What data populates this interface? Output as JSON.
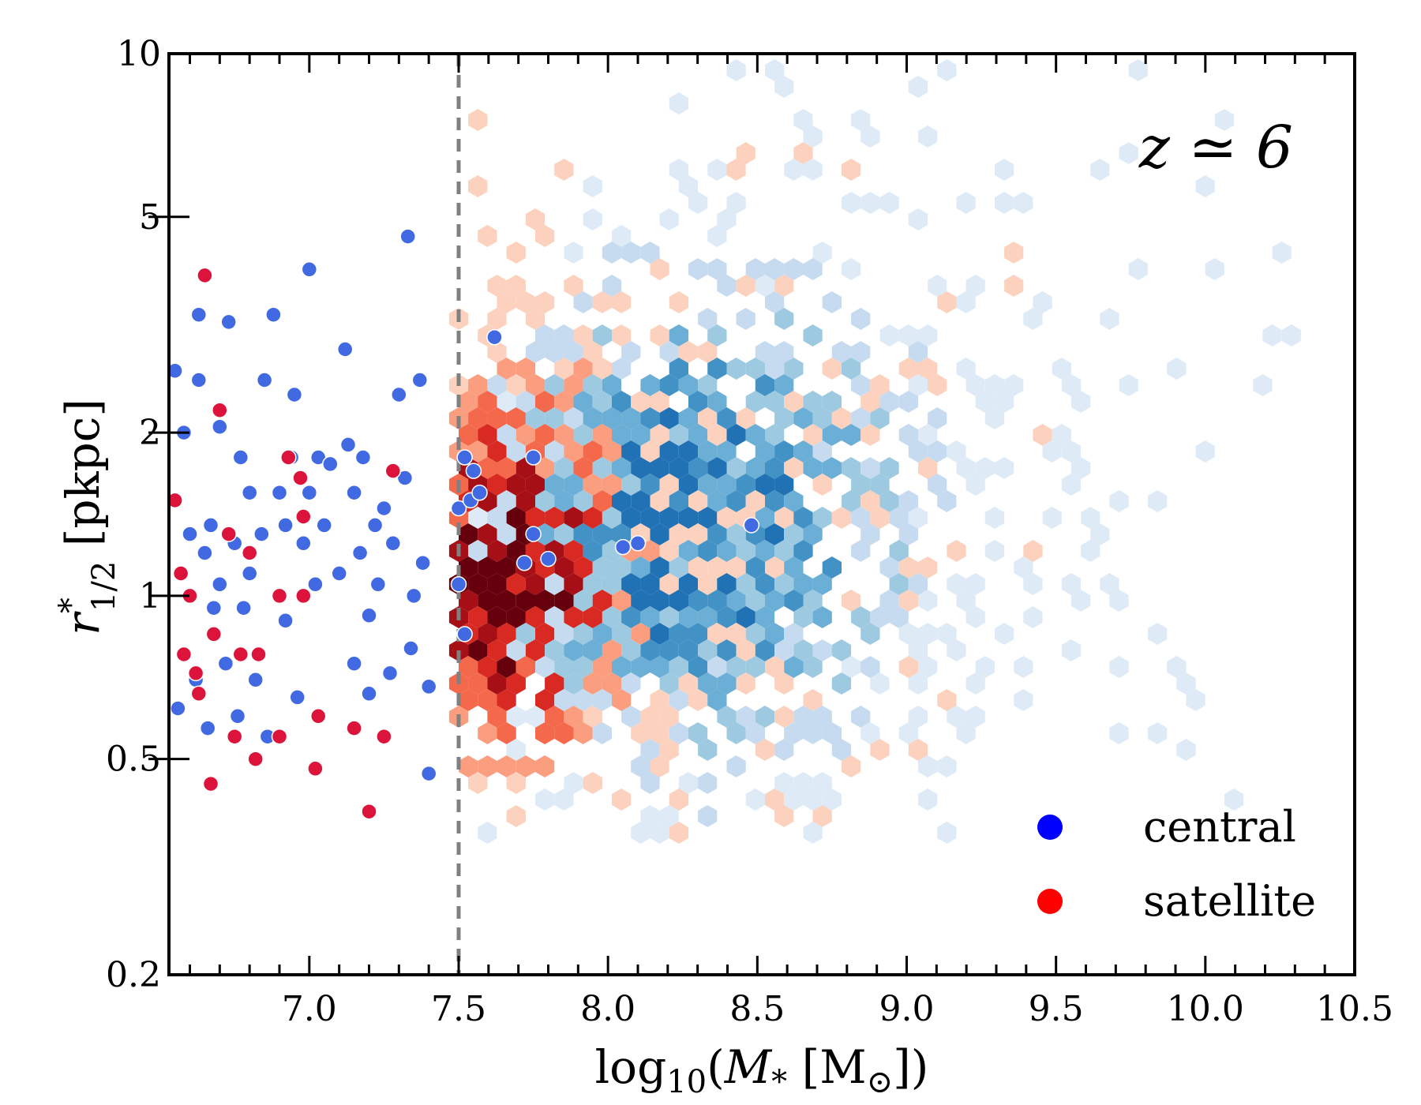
{
  "chart_data": {
    "type": "scatter",
    "title": "",
    "annotation": "z ≃ 6",
    "xlabel": "log10(M* [M⊙])",
    "xlabel_parts": {
      "pre": "log",
      "sub": "10",
      "mid": "(",
      "var": "M",
      "varsub": "*",
      "unit": " [M",
      "sun": "⊙",
      "post": "])"
    },
    "ylabel": "r*1/2 [pkpc]",
    "ylabel_parts": {
      "var": "r",
      "sup": "*",
      "sub": "1/2",
      "unit": " [pkpc]"
    },
    "xlim": [
      6.53,
      10.5
    ],
    "ylim": [
      0.2,
      10
    ],
    "yscale": "log",
    "xticks": [
      7.0,
      7.5,
      8.0,
      8.5,
      9.0,
      9.5,
      10.0,
      10.5
    ],
    "xtick_labels": [
      "7.0",
      "7.5",
      "8.0",
      "8.5",
      "9.0",
      "9.5",
      "10.0",
      "10.5"
    ],
    "yticks": [
      0.2,
      0.5,
      1,
      2,
      5,
      10
    ],
    "ytick_labels": [
      "0.2",
      "0.5",
      "1",
      "2",
      "5",
      "10"
    ],
    "vline": {
      "x": 7.5,
      "style": "dashed",
      "color": "#808080"
    },
    "legend": {
      "position": "lower-right",
      "entries": [
        {
          "label": "central",
          "color": "#0000ff"
        },
        {
          "label": "satellite",
          "color": "#ff0000"
        }
      ]
    },
    "colors": {
      "central": "#4169e1",
      "satellite": "#dc143c",
      "central_outline": "#ffffff"
    },
    "hexbin": {
      "description": "2D density of galaxies (red = satellite-dominated, blue = central-dominated)",
      "x_range": [
        7.5,
        10.35
      ],
      "y_range": [
        0.35,
        10
      ],
      "peak_satellite": {
        "x": 7.65,
        "y": 1.1
      },
      "peak_central": {
        "x": 8.3,
        "y": 1.4
      },
      "red_scale": [
        "#fcd2bf",
        "#fb9e80",
        "#f4684b",
        "#d82a22",
        "#a50f15",
        "#67000d"
      ],
      "blue_scale": [
        "#deebf7",
        "#c6dbef",
        "#9ecae1",
        "#6baed6",
        "#4292c6",
        "#2171b5"
      ]
    },
    "series": [
      {
        "name": "central",
        "points": [
          [
            6.55,
            2.6
          ],
          [
            6.56,
            0.62
          ],
          [
            6.58,
            2.0
          ],
          [
            6.6,
            1.3
          ],
          [
            6.62,
            0.7
          ],
          [
            6.63,
            3.3
          ],
          [
            6.63,
            2.5
          ],
          [
            6.65,
            1.2
          ],
          [
            6.66,
            0.57
          ],
          [
            6.67,
            1.35
          ],
          [
            6.68,
            0.95
          ],
          [
            6.7,
            2.05
          ],
          [
            6.7,
            1.05
          ],
          [
            6.72,
            0.75
          ],
          [
            6.73,
            3.2
          ],
          [
            6.75,
            1.25
          ],
          [
            6.76,
            0.6
          ],
          [
            6.77,
            1.8
          ],
          [
            6.78,
            0.95
          ],
          [
            6.8,
            1.55
          ],
          [
            6.8,
            1.1
          ],
          [
            6.82,
            0.7
          ],
          [
            6.84,
            1.3
          ],
          [
            6.85,
            2.5
          ],
          [
            6.86,
            0.55
          ],
          [
            6.88,
            3.3
          ],
          [
            6.9,
            1.55
          ],
          [
            6.92,
            1.35
          ],
          [
            6.92,
            0.9
          ],
          [
            6.94,
            1.8
          ],
          [
            6.95,
            2.35
          ],
          [
            6.96,
            0.65
          ],
          [
            6.98,
            1.25
          ],
          [
            7.0,
            4.0
          ],
          [
            7.0,
            1.55
          ],
          [
            7.02,
            1.05
          ],
          [
            7.03,
            1.8
          ],
          [
            7.05,
            1.35
          ],
          [
            7.07,
            1.75
          ],
          [
            7.1,
            1.1
          ],
          [
            7.12,
            2.85
          ],
          [
            7.13,
            1.9
          ],
          [
            7.15,
            1.55
          ],
          [
            7.15,
            0.75
          ],
          [
            7.17,
            1.2
          ],
          [
            7.18,
            1.8
          ],
          [
            7.2,
            0.92
          ],
          [
            7.2,
            0.66
          ],
          [
            7.22,
            1.35
          ],
          [
            7.23,
            1.05
          ],
          [
            7.25,
            1.45
          ],
          [
            7.27,
            0.72
          ],
          [
            7.28,
            1.25
          ],
          [
            7.3,
            2.35
          ],
          [
            7.32,
            1.65
          ],
          [
            7.33,
            4.6
          ],
          [
            7.34,
            0.8
          ],
          [
            7.35,
            1.0
          ],
          [
            7.37,
            2.5
          ],
          [
            7.38,
            1.15
          ],
          [
            7.4,
            0.68
          ],
          [
            7.4,
            0.47
          ],
          [
            7.5,
            1.45
          ],
          [
            7.5,
            1.05
          ],
          [
            7.52,
            0.85
          ],
          [
            7.52,
            1.8
          ],
          [
            7.54,
            1.5
          ],
          [
            7.55,
            1.7
          ],
          [
            7.57,
            1.55
          ],
          [
            7.62,
            3.0
          ],
          [
            7.72,
            1.15
          ],
          [
            7.75,
            1.8
          ],
          [
            7.75,
            1.3
          ],
          [
            7.8,
            1.17
          ],
          [
            8.05,
            1.23
          ],
          [
            8.1,
            1.25
          ],
          [
            8.48,
            1.35
          ]
        ]
      },
      {
        "name": "satellite",
        "points": [
          [
            6.55,
            1.5
          ],
          [
            6.57,
            1.1
          ],
          [
            6.58,
            0.78
          ],
          [
            6.6,
            1.0
          ],
          [
            6.62,
            0.72
          ],
          [
            6.63,
            0.66
          ],
          [
            6.65,
            3.9
          ],
          [
            6.67,
            0.45
          ],
          [
            6.68,
            0.85
          ],
          [
            6.7,
            2.2
          ],
          [
            6.73,
            1.3
          ],
          [
            6.75,
            0.55
          ],
          [
            6.77,
            0.78
          ],
          [
            6.8,
            1.2
          ],
          [
            6.82,
            0.5
          ],
          [
            6.83,
            0.78
          ],
          [
            6.9,
            1.0
          ],
          [
            6.9,
            0.55
          ],
          [
            6.93,
            1.8
          ],
          [
            6.97,
            1.65
          ],
          [
            6.98,
            1.4
          ],
          [
            6.98,
            1.0
          ],
          [
            7.02,
            0.48
          ],
          [
            7.03,
            0.6
          ],
          [
            7.15,
            0.57
          ],
          [
            7.2,
            0.4
          ],
          [
            7.25,
            0.55
          ],
          [
            7.28,
            1.7
          ]
        ]
      }
    ]
  }
}
